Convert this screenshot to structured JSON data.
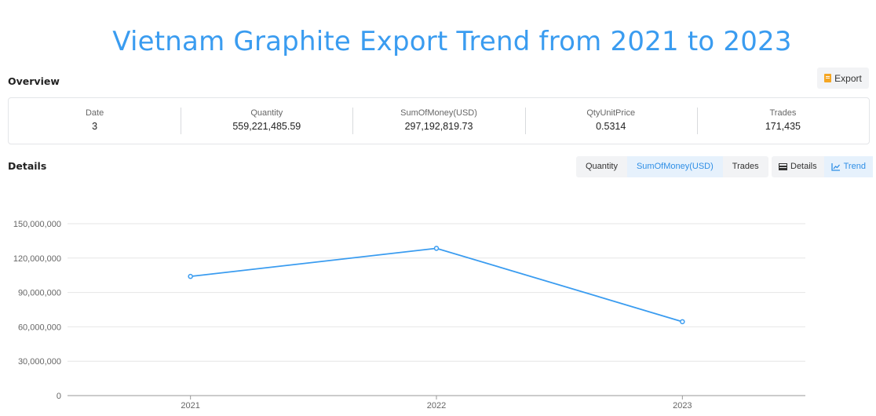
{
  "page": {
    "title": "Vietnam Graphite Export Trend from 2021 to 2023"
  },
  "overview": {
    "section_label": "Overview",
    "export_label": "Export",
    "stats": [
      {
        "label": "Date",
        "value": "3"
      },
      {
        "label": "Quantity",
        "value": "559,221,485.59"
      },
      {
        "label": "SumOfMoney(USD)",
        "value": "297,192,819.73"
      },
      {
        "label": "QtyUnitPrice",
        "value": "0.5314"
      },
      {
        "label": "Trades",
        "value": "171,435"
      }
    ]
  },
  "details": {
    "section_label": "Details",
    "metric_tabs": [
      {
        "label": "Quantity",
        "active": false
      },
      {
        "label": "SumOfMoney(USD)",
        "active": true
      },
      {
        "label": "Trades",
        "active": false
      }
    ],
    "view_tabs": [
      {
        "label": "Details",
        "active": false,
        "icon": "table-icon"
      },
      {
        "label": "Trend",
        "active": true,
        "icon": "line-chart-icon"
      }
    ]
  },
  "colors": {
    "accent": "#3a9cf0",
    "line": "#3a9cf0",
    "grid": "#e6e6e6"
  },
  "chart_data": {
    "type": "line",
    "categories": [
      "2021",
      "2022",
      "2023"
    ],
    "series": [
      {
        "values": [
          104000000,
          128500000,
          64500000
        ]
      }
    ],
    "ylim": [
      0,
      150000000
    ],
    "yticks": [
      0,
      30000000,
      60000000,
      90000000,
      120000000,
      150000000
    ],
    "ytick_labels": [
      "0",
      "30,000,000",
      "60,000,000",
      "90,000,000",
      "120,000,000",
      "150,000,000"
    ],
    "grid": true
  }
}
